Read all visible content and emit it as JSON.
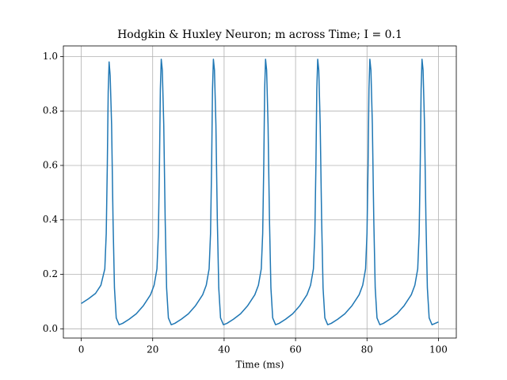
{
  "chart_data": {
    "type": "line",
    "title": "Hodgkin & Huxley Neuron; m across Time; I = 0.1",
    "xlabel": "Time (ms)",
    "x": [
      0,
      2,
      4,
      5.5,
      6.6,
      7,
      7.3,
      7.55,
      7.8,
      8.1,
      8.5,
      8.9,
      9.3,
      9.8,
      10.6,
      11.6,
      13.4,
      15.4,
      17.4,
      19.4,
      20.4,
      21.2,
      21.6,
      21.9,
      22.15,
      22.4,
      22.7,
      23.1,
      23.5,
      23.9,
      24.4,
      25.2,
      26.2,
      28.0,
      30.0,
      32.0,
      34.0,
      35.0,
      35.8,
      36.2,
      36.5,
      36.75,
      37.0,
      37.3,
      37.7,
      38.1,
      38.5,
      39.0,
      39.8,
      40.8,
      42.6,
      44.6,
      46.6,
      48.6,
      49.6,
      50.4,
      50.8,
      51.1,
      51.35,
      51.6,
      51.9,
      52.3,
      52.7,
      53.1,
      53.6,
      54.4,
      55.4,
      57.2,
      59.2,
      61.2,
      63.2,
      64.2,
      65.0,
      65.4,
      65.7,
      65.95,
      66.2,
      66.5,
      66.9,
      67.3,
      67.7,
      68.2,
      69.0,
      70.0,
      71.8,
      73.8,
      75.8,
      77.8,
      78.8,
      79.6,
      80.0,
      80.3,
      80.55,
      80.8,
      81.1,
      81.5,
      81.9,
      82.3,
      82.8,
      83.6,
      84.6,
      86.4,
      88.4,
      90.4,
      92.4,
      93.4,
      94.2,
      94.6,
      94.9,
      95.15,
      95.4,
      95.7,
      96.1,
      96.5,
      96.9,
      97.4,
      98.2,
      100
    ],
    "series": [
      {
        "name": "m",
        "color": "#1f77b4",
        "values": [
          0.093,
          0.11,
          0.13,
          0.16,
          0.22,
          0.35,
          0.6,
          0.87,
          0.98,
          0.93,
          0.75,
          0.4,
          0.15,
          0.04,
          0.015,
          0.02,
          0.035,
          0.055,
          0.085,
          0.125,
          0.16,
          0.22,
          0.35,
          0.6,
          0.88,
          0.99,
          0.95,
          0.75,
          0.4,
          0.15,
          0.04,
          0.015,
          0.02,
          0.035,
          0.055,
          0.085,
          0.125,
          0.16,
          0.22,
          0.35,
          0.6,
          0.88,
          0.99,
          0.95,
          0.75,
          0.4,
          0.15,
          0.04,
          0.015,
          0.02,
          0.035,
          0.055,
          0.085,
          0.125,
          0.16,
          0.22,
          0.35,
          0.6,
          0.88,
          0.99,
          0.95,
          0.75,
          0.4,
          0.15,
          0.04,
          0.015,
          0.02,
          0.035,
          0.055,
          0.085,
          0.125,
          0.16,
          0.22,
          0.35,
          0.6,
          0.88,
          0.99,
          0.95,
          0.75,
          0.4,
          0.15,
          0.04,
          0.015,
          0.02,
          0.035,
          0.055,
          0.085,
          0.125,
          0.16,
          0.22,
          0.35,
          0.6,
          0.88,
          0.99,
          0.95,
          0.75,
          0.4,
          0.15,
          0.04,
          0.015,
          0.02,
          0.035,
          0.055,
          0.085,
          0.125,
          0.16,
          0.22,
          0.35,
          0.6,
          0.88,
          0.99,
          0.95,
          0.75,
          0.4,
          0.15,
          0.04,
          0.015,
          0.025
        ]
      }
    ],
    "xlim": [
      -5,
      105
    ],
    "xticks": [
      0,
      20,
      40,
      60,
      80,
      100
    ],
    "ylim": [
      -0.034,
      1.039
    ],
    "yticks": [
      {
        "value": 0,
        "label": "0.0"
      },
      0.2,
      0.4,
      0.6,
      0.8,
      {
        "value": 1,
        "label": "1.0"
      }
    ],
    "grid": true
  }
}
